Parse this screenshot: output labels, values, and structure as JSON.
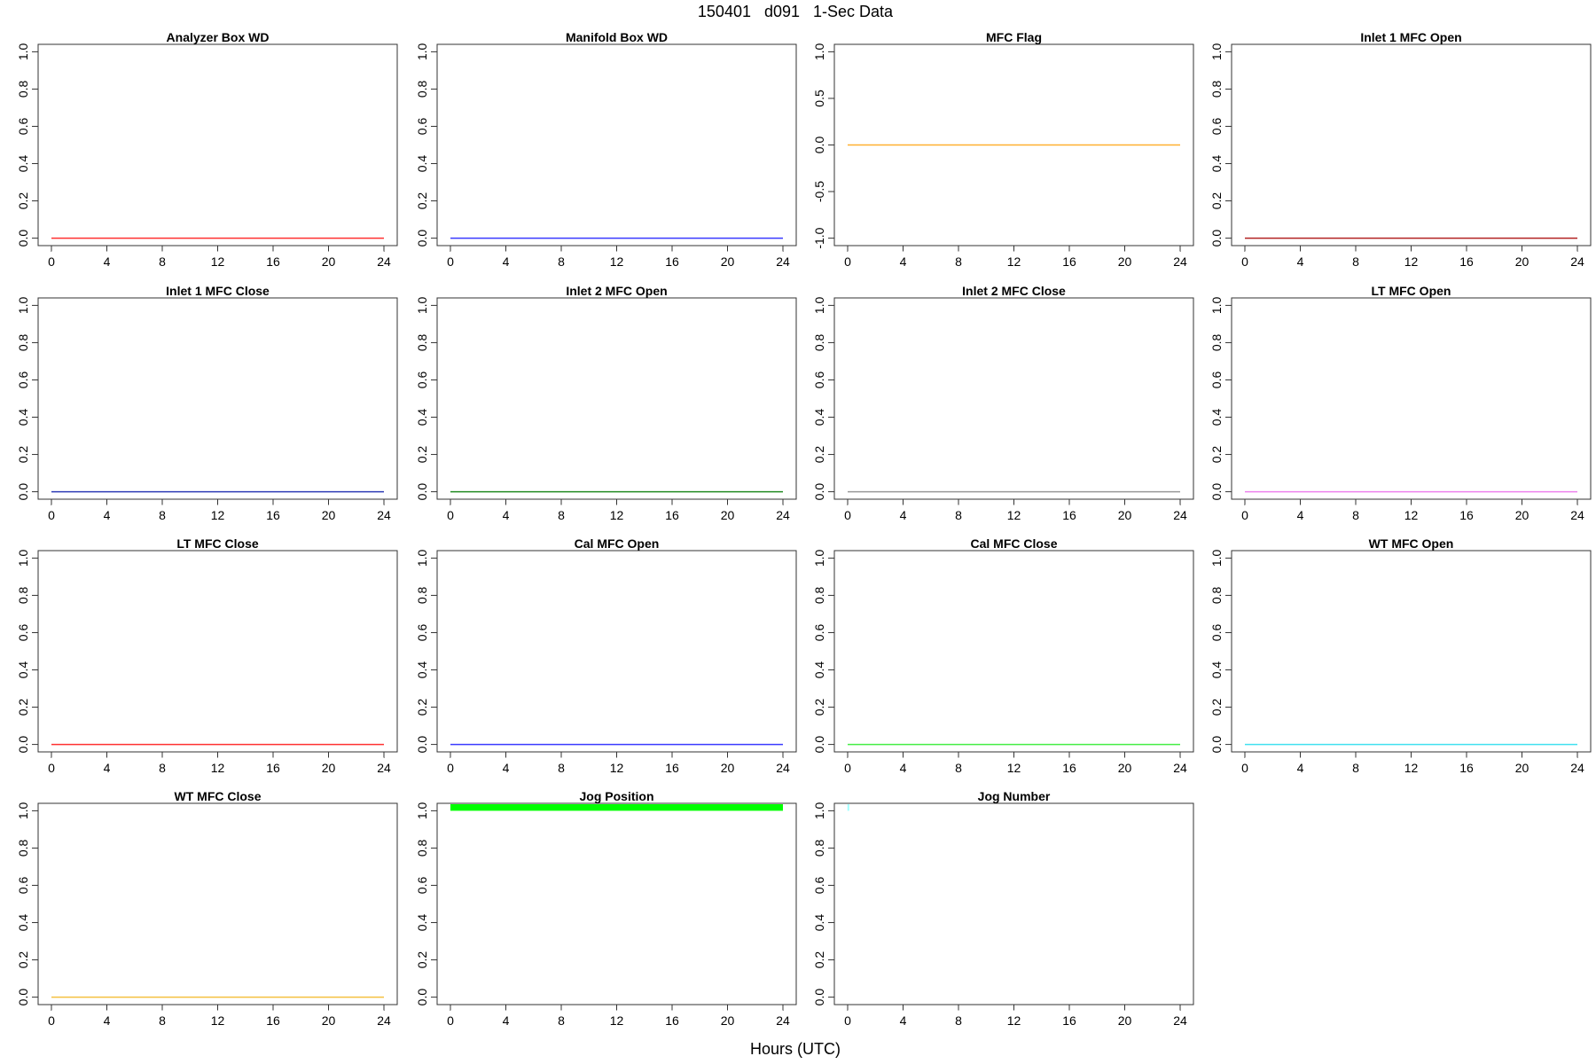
{
  "title": "150401   d091   1-Sec Data",
  "xlabel": "Hours (UTC)",
  "chart_data": [
    {
      "type": "line",
      "title": "Analyzer Box WD",
      "x": [
        0,
        24
      ],
      "y": [
        0,
        0
      ],
      "ylim": [
        0,
        1
      ],
      "yticks": [
        "0.0",
        "0.2",
        "0.4",
        "0.6",
        "0.8",
        "1.0"
      ],
      "xlim": [
        0,
        24
      ],
      "xticks": [
        "0",
        "4",
        "8",
        "12",
        "16",
        "20",
        "24"
      ],
      "color": "#ff3030"
    },
    {
      "type": "line",
      "title": "Manifold Box WD",
      "x": [
        0,
        24
      ],
      "y": [
        0,
        0
      ],
      "ylim": [
        0,
        1
      ],
      "yticks": [
        "0.0",
        "0.2",
        "0.4",
        "0.6",
        "0.8",
        "1.0"
      ],
      "xlim": [
        0,
        24
      ],
      "xticks": [
        "0",
        "4",
        "8",
        "12",
        "16",
        "20",
        "24"
      ],
      "color": "#3a3aff"
    },
    {
      "type": "line",
      "title": "MFC Flag",
      "x": [
        0,
        24
      ],
      "y": [
        0,
        0
      ],
      "ylim": [
        -1,
        1
      ],
      "yticks": [
        "-1.0",
        "-0.5",
        "0.0",
        "0.5",
        "1.0"
      ],
      "xlim": [
        0,
        24
      ],
      "xticks": [
        "0",
        "4",
        "8",
        "12",
        "16",
        "20",
        "24"
      ],
      "color": "#ffb030"
    },
    {
      "type": "line",
      "title": "Inlet 1 MFC Open",
      "x": [
        0,
        24
      ],
      "y": [
        0,
        0
      ],
      "ylim": [
        0,
        1
      ],
      "yticks": [
        "0.0",
        "0.2",
        "0.4",
        "0.6",
        "0.8",
        "1.0"
      ],
      "xlim": [
        0,
        24
      ],
      "xticks": [
        "0",
        "4",
        "8",
        "12",
        "16",
        "20",
        "24"
      ],
      "color": "#b22222"
    },
    {
      "type": "line",
      "title": "Inlet 1 MFC Close",
      "x": [
        0,
        24
      ],
      "y": [
        0,
        0
      ],
      "ylim": [
        0,
        1
      ],
      "yticks": [
        "0.0",
        "0.2",
        "0.4",
        "0.6",
        "0.8",
        "1.0"
      ],
      "xlim": [
        0,
        24
      ],
      "xticks": [
        "0",
        "4",
        "8",
        "12",
        "16",
        "20",
        "24"
      ],
      "color": "#2e3bb5"
    },
    {
      "type": "line",
      "title": "Inlet 2 MFC Open",
      "x": [
        0,
        24
      ],
      "y": [
        0,
        0
      ],
      "ylim": [
        0,
        1
      ],
      "yticks": [
        "0.0",
        "0.2",
        "0.4",
        "0.6",
        "0.8",
        "1.0"
      ],
      "xlim": [
        0,
        24
      ],
      "xticks": [
        "0",
        "4",
        "8",
        "12",
        "16",
        "20",
        "24"
      ],
      "color": "#228b22"
    },
    {
      "type": "line",
      "title": "Inlet 2 MFC Close",
      "x": [
        0,
        24
      ],
      "y": [
        0,
        0
      ],
      "ylim": [
        0,
        1
      ],
      "yticks": [
        "0.0",
        "0.2",
        "0.4",
        "0.6",
        "0.8",
        "1.0"
      ],
      "xlim": [
        0,
        24
      ],
      "xticks": [
        "0",
        "4",
        "8",
        "12",
        "16",
        "20",
        "24"
      ],
      "color": "#999999"
    },
    {
      "type": "line",
      "title": "LT MFC Open",
      "x": [
        0,
        24
      ],
      "y": [
        0,
        0
      ],
      "ylim": [
        0,
        1
      ],
      "yticks": [
        "0.0",
        "0.2",
        "0.4",
        "0.6",
        "0.8",
        "1.0"
      ],
      "xlim": [
        0,
        24
      ],
      "xticks": [
        "0",
        "4",
        "8",
        "12",
        "16",
        "20",
        "24"
      ],
      "color": "#ee82ee"
    },
    {
      "type": "line",
      "title": "LT MFC Close",
      "x": [
        0,
        24
      ],
      "y": [
        0,
        0
      ],
      "ylim": [
        0,
        1
      ],
      "yticks": [
        "0.0",
        "0.2",
        "0.4",
        "0.6",
        "0.8",
        "1.0"
      ],
      "xlim": [
        0,
        24
      ],
      "xticks": [
        "0",
        "4",
        "8",
        "12",
        "16",
        "20",
        "24"
      ],
      "color": "#ff3030"
    },
    {
      "type": "line",
      "title": "Cal MFC Open",
      "x": [
        0,
        24
      ],
      "y": [
        0,
        0
      ],
      "ylim": [
        0,
        1
      ],
      "yticks": [
        "0.0",
        "0.2",
        "0.4",
        "0.6",
        "0.8",
        "1.0"
      ],
      "xlim": [
        0,
        24
      ],
      "xticks": [
        "0",
        "4",
        "8",
        "12",
        "16",
        "20",
        "24"
      ],
      "color": "#3a3aff"
    },
    {
      "type": "line",
      "title": "Cal MFC Close",
      "x": [
        0,
        24
      ],
      "y": [
        0,
        0
      ],
      "ylim": [
        0,
        1
      ],
      "yticks": [
        "0.0",
        "0.2",
        "0.4",
        "0.6",
        "0.8",
        "1.0"
      ],
      "xlim": [
        0,
        24
      ],
      "xticks": [
        "0",
        "4",
        "8",
        "12",
        "16",
        "20",
        "24"
      ],
      "color": "#44ee44"
    },
    {
      "type": "line",
      "title": "WT MFC Open",
      "x": [
        0,
        24
      ],
      "y": [
        0,
        0
      ],
      "ylim": [
        0,
        1
      ],
      "yticks": [
        "0.0",
        "0.2",
        "0.4",
        "0.6",
        "0.8",
        "1.0"
      ],
      "xlim": [
        0,
        24
      ],
      "xticks": [
        "0",
        "4",
        "8",
        "12",
        "16",
        "20",
        "24"
      ],
      "color": "#40e0f0"
    },
    {
      "type": "line",
      "title": "WT MFC Close",
      "x": [
        0,
        24
      ],
      "y": [
        0,
        0
      ],
      "ylim": [
        0,
        1
      ],
      "yticks": [
        "0.0",
        "0.2",
        "0.4",
        "0.6",
        "0.8",
        "1.0"
      ],
      "xlim": [
        0,
        24
      ],
      "xticks": [
        "0",
        "4",
        "8",
        "12",
        "16",
        "20",
        "24"
      ],
      "color": "#f5c040"
    },
    {
      "type": "area",
      "title": "Jog Position",
      "x": [
        0,
        24
      ],
      "y": [
        1,
        1
      ],
      "y_upper_clipped": true,
      "ylim": [
        0,
        1
      ],
      "yticks": [
        "0.0",
        "0.2",
        "0.4",
        "0.6",
        "0.8",
        "1.0"
      ],
      "xlim": [
        0,
        24
      ],
      "xticks": [
        "0",
        "4",
        "8",
        "12",
        "16",
        "20",
        "24"
      ],
      "color": "#00ff00"
    },
    {
      "type": "line",
      "title": "Jog Number",
      "x": [
        0.05,
        0.05
      ],
      "y": [
        1,
        1
      ],
      "y_upper_clipped": true,
      "ylim": [
        0,
        1
      ],
      "yticks": [
        "0.0",
        "0.2",
        "0.4",
        "0.6",
        "0.8",
        "1.0"
      ],
      "xlim": [
        0,
        24
      ],
      "xticks": [
        "0",
        "4",
        "8",
        "12",
        "16",
        "20",
        "24"
      ],
      "color": "#a0ffff"
    }
  ]
}
